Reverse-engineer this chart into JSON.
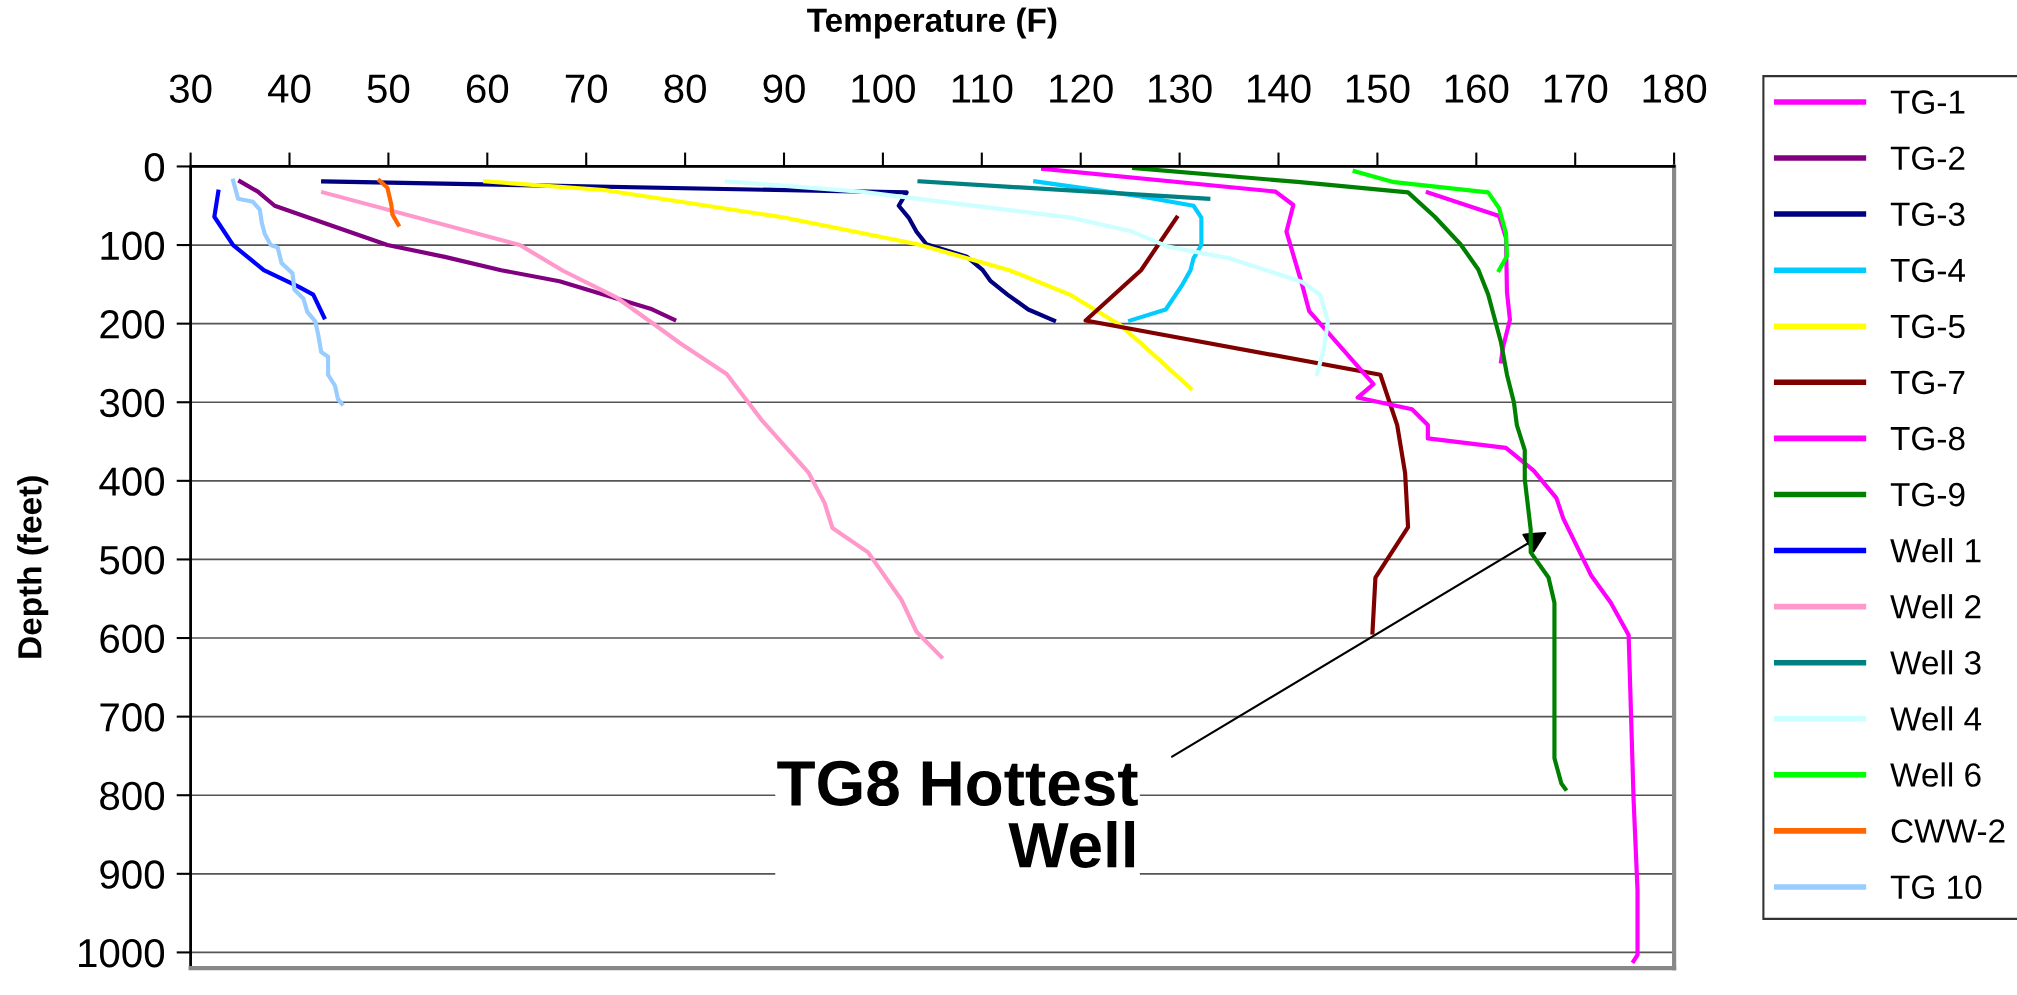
{
  "chart_data": {
    "type": "line",
    "xlabel": "Temperature (F)",
    "ylabel": "Depth (feet)",
    "xlim": [
      30,
      180
    ],
    "xticks": [
      30,
      40,
      50,
      60,
      70,
      80,
      90,
      100,
      110,
      120,
      130,
      140,
      150,
      160,
      170,
      180
    ],
    "ylim": [
      1020,
      0
    ],
    "yticks": [
      0,
      100,
      200,
      300,
      400,
      500,
      600,
      700,
      800,
      900,
      1000
    ],
    "grid": "y",
    "legend": "right",
    "marker": "none",
    "line_style": "solid",
    "annotations": [
      "TG8 Hottest\nWell"
    ],
    "series": [
      {
        "name": "TG-1",
        "color": "#ff00ff",
        "x": [
          155.1,
          162.3,
          163,
          163.1,
          163.4,
          162.7,
          162.5
        ],
        "values": [
          33,
          63,
          91,
          160,
          195,
          230,
          248
        ]
      },
      {
        "name": "TG-2",
        "color": "#800080",
        "x": [
          35,
          36.8,
          38.5,
          41.9,
          49.9,
          55.7,
          61.4,
          67.3,
          76.5,
          78.9
        ],
        "values": [
          19,
          32,
          50,
          65,
          100,
          115,
          132,
          146,
          181,
          195
        ]
      },
      {
        "name": "TG-3",
        "color": "#000080",
        "x": [
          43.4,
          102.4,
          101.6,
          102.6,
          103.4,
          104.4,
          108.5,
          110.1,
          110.9,
          112.6,
          114.7,
          117.3
        ],
        "values": [
          19,
          33,
          50,
          65,
          83,
          99,
          115,
          132,
          146,
          163,
          182,
          196
        ]
      },
      {
        "name": "TG-4",
        "color": "#00ccff",
        "x": [
          115.4,
          126.1,
          131.4,
          132.2,
          132.2,
          131.4,
          131.1,
          130.2,
          128.6,
          125
        ],
        "values": [
          19,
          38,
          50,
          65,
          100,
          117,
          132,
          152,
          182,
          196
        ]
      },
      {
        "name": "TG-5",
        "color": "#ffff00",
        "x": [
          59.8,
          71.8,
          90,
          103.5,
          112.8,
          118.9,
          123.9,
          126.1,
          131.1
        ],
        "values": [
          19,
          30,
          65,
          99,
          132,
          163,
          201,
          225,
          282
        ]
      },
      {
        "name": "TG-7",
        "color": "#800000",
        "x": [
          129.7,
          126.1,
          120.5,
          150.3,
          152.0,
          152.8,
          153.1,
          149.8,
          149.5
        ],
        "values": [
          65,
          132,
          196,
          265,
          329,
          390,
          459,
          523,
          593
        ]
      },
      {
        "name": "TG-8",
        "color": "#ff00ff",
        "x": [
          116.2,
          139.7,
          141.5,
          140.8,
          142.4,
          143.1,
          149.6,
          148,
          153.5,
          155.1,
          155.1,
          163,
          165.8,
          168.1,
          168.8,
          171.6,
          173.6,
          175.4,
          175.5,
          175.9,
          176.3,
          176.3,
          175.9
        ],
        "values": [
          3,
          32,
          49,
          83,
          151,
          184,
          277,
          294,
          309,
          329,
          346,
          358,
          387,
          422,
          448,
          520,
          555,
          596,
          637,
          805,
          921,
          1003,
          1011
        ]
      },
      {
        "name": "TG-9",
        "color": "#008000",
        "x": [
          125.4,
          142.2,
          153.1,
          155.8,
          158.4,
          160.2,
          161.2,
          162.5,
          163.1,
          163.8,
          164.1,
          164.9,
          164.9,
          165.5,
          165.5,
          167.3,
          167.9,
          167.9,
          168.6,
          169
        ],
        "values": [
          2,
          20,
          33,
          64,
          99,
          131,
          163,
          224,
          265,
          300,
          329,
          361,
          398,
          462,
          491,
          523,
          555,
          753,
          785,
          792
        ]
      },
      {
        "name": "Well 1",
        "color": "#0000ff",
        "x": [
          32.8,
          32.4,
          34.3,
          37.4,
          40.9,
          42.4,
          43.5
        ],
        "values": [
          32,
          64,
          100,
          132,
          153,
          163,
          192
        ]
      },
      {
        "name": "Well 2",
        "color": "#ff99cc",
        "x": [
          43.4,
          63.3,
          67.7,
          73.1,
          77,
          79.5,
          84.2,
          87.7,
          92.5,
          94.1,
          94.9,
          98.5,
          101.9,
          103.4,
          105.9
        ],
        "values": [
          33,
          100,
          133,
          167,
          202,
          225,
          264,
          322,
          390,
          428,
          460,
          491,
          552,
          592,
          624
        ]
      },
      {
        "name": "Well 3",
        "color": "#008080",
        "x": [
          103.7,
          132.9
        ],
        "values": [
          19,
          41
        ]
      },
      {
        "name": "Well 4",
        "color": "#ccffff",
        "x": [
          84.2,
          97.7,
          118.9,
          125,
          128.8,
          135.1,
          142.4,
          144.2,
          145,
          144.6,
          143.9
        ],
        "values": [
          19,
          32,
          65,
          82,
          102,
          117,
          147,
          163,
          197,
          231,
          264
        ]
      },
      {
        "name": "Well 6",
        "color": "#00ff00",
        "x": [
          147.7,
          151.7,
          161.2,
          162.3,
          163,
          163.1,
          162.3
        ],
        "values": [
          6,
          20,
          33,
          53,
          85,
          114,
          132
        ]
      },
      {
        "name": "CWW-2",
        "color": "#ff6600",
        "x": [
          49.1,
          49.9,
          50.3,
          50.4,
          51
        ],
        "values": [
          18,
          27,
          49,
          61,
          74
        ]
      },
      {
        "name": "TG 10",
        "color": "#99ccff",
        "x": [
          34.3,
          34.8,
          36.3,
          37,
          37.2,
          37.5,
          38.1,
          38.8,
          39.2,
          40.3,
          40.5,
          41.4,
          41.8,
          42.6,
          42.9,
          43.2,
          43.9,
          43.9,
          44.6,
          44.9,
          45.3
        ],
        "values": [
          18,
          41,
          45,
          55,
          72,
          86,
          100,
          103,
          123,
          136,
          157,
          168,
          185,
          197,
          214,
          236,
          242,
          265,
          279,
          296,
          302
        ]
      }
    ]
  }
}
